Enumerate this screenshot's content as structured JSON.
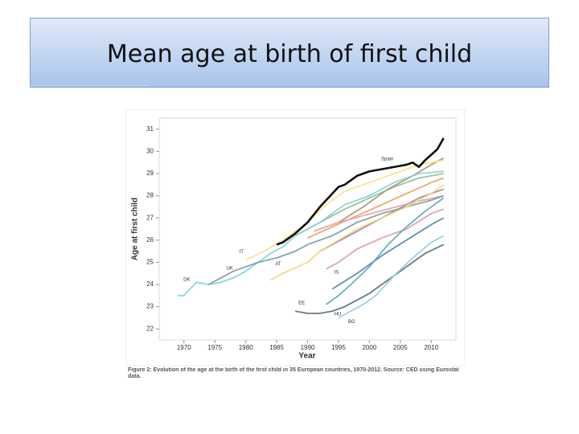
{
  "slide_title": "Mean age at birth of first child",
  "caption": "Figure 2: Evolution of the age at the birth of the first child in 35 European countries, 1970-2012. Source: CED using Eurostat data.",
  "chart_data": {
    "type": "line",
    "xlabel": "Year",
    "ylabel": "Age at first child",
    "xlim": [
      1966,
      2014
    ],
    "xticks": [
      1970,
      1975,
      1980,
      1985,
      1990,
      1995,
      2000,
      2005,
      2010
    ],
    "ylim": [
      21.5,
      31.5
    ],
    "yticks": [
      22,
      23,
      24,
      25,
      26,
      27,
      28,
      29,
      30,
      31
    ],
    "grid": false,
    "series": [
      {
        "color": "#e8a060",
        "x": [
          1990,
          1994,
          1998,
          2002,
          2006,
          2010,
          2012
        ],
        "values": [
          26.1,
          26.6,
          27.1,
          27.6,
          28.1,
          28.6,
          28.8
        ]
      },
      {
        "color": "#9a82b8",
        "x": [
          1992,
          1996,
          2000,
          2004,
          2008,
          2012
        ],
        "values": [
          25.5,
          26.1,
          26.7,
          27.3,
          27.9,
          28.3
        ]
      },
      {
        "color": "#8fbf8f",
        "x": [
          1988,
          1992,
          1996,
          2000,
          2004,
          2008,
          2012
        ],
        "values": [
          26.2,
          26.8,
          27.4,
          27.9,
          28.4,
          28.8,
          29.0
        ]
      },
      {
        "color": "#b0906a",
        "x": [
          1995,
          1999,
          2003,
          2007,
          2010,
          2012
        ],
        "values": [
          26.8,
          27.5,
          28.3,
          28.9,
          29.4,
          29.7
        ]
      },
      {
        "color": "#4f7fae",
        "x": [
          1994,
          1998,
          2002,
          2006,
          2010,
          2012
        ],
        "values": [
          23.8,
          24.5,
          25.3,
          26.0,
          26.7,
          27.0
        ]
      },
      {
        "color": "#e6a0a0",
        "x": [
          1991,
          1995,
          1999,
          2003,
          2007,
          2012
        ],
        "values": [
          26.4,
          26.8,
          27.1,
          27.4,
          27.7,
          28.0
        ]
      },
      {
        "name": "DK",
        "color": "#7fd3d6",
        "x": [
          1969,
          1970,
          1971,
          1972,
          1974,
          1976,
          1978,
          1980,
          1982,
          1984,
          1986,
          1988,
          1990,
          1992,
          1994,
          1996,
          1998,
          2000,
          2004,
          2008,
          2012
        ],
        "values": [
          23.5,
          23.5,
          23.8,
          24.1,
          24.0,
          24.1,
          24.3,
          24.6,
          25.0,
          25.4,
          25.7,
          26.2,
          26.5,
          26.8,
          27.2,
          27.6,
          27.8,
          28.0,
          28.6,
          29.0,
          29.1
        ]
      },
      {
        "name": "UK",
        "color": "#7a9aa8",
        "x": [
          1974,
          1976,
          1978,
          1980,
          1982,
          1985,
          1988,
          1990,
          1994,
          1998,
          2002,
          2006,
          2010,
          2012
        ],
        "values": [
          24.0,
          24.3,
          24.6,
          24.8,
          25.0,
          25.2,
          25.5,
          25.8,
          26.2,
          26.8,
          27.2,
          27.5,
          27.8,
          28.0
        ]
      },
      {
        "name": "IT",
        "color": "#f2e58a",
        "x": [
          1980,
          1983,
          1986,
          1990,
          1993,
          1996,
          2000,
          2004,
          2008,
          2012
        ],
        "values": [
          25.1,
          25.5,
          26.0,
          26.8,
          27.6,
          28.2,
          28.6,
          29.0,
          29.4,
          29.6
        ]
      },
      {
        "name": "AT",
        "color": "#f0d870",
        "x": [
          1984,
          1986,
          1990,
          1992,
          1995,
          1998,
          2002,
          2006,
          2010,
          2012
        ],
        "values": [
          24.2,
          24.5,
          25.0,
          25.5,
          26.0,
          26.5,
          27.0,
          27.5,
          28.1,
          28.5
        ]
      },
      {
        "name": "IS",
        "color": "#d89bb0",
        "x": [
          1993,
          1995,
          1998,
          2002,
          2006,
          2010,
          2012
        ],
        "values": [
          24.7,
          25.0,
          25.6,
          26.1,
          26.5,
          27.2,
          27.4
        ]
      },
      {
        "name": "HU",
        "color": "#5aa9b5",
        "x": [
          1993,
          1995,
          1997,
          2000,
          2003,
          2006,
          2009,
          2012
        ],
        "values": [
          23.1,
          23.5,
          24.0,
          24.8,
          25.8,
          26.6,
          27.3,
          27.9
        ]
      },
      {
        "name": "EE",
        "color": "#5a6e7a",
        "x": [
          1988,
          1990,
          1992,
          1994,
          1996,
          1998,
          2000,
          2003,
          2006,
          2009,
          2012
        ],
        "values": [
          22.8,
          22.7,
          22.7,
          22.8,
          23.0,
          23.3,
          23.6,
          24.2,
          24.8,
          25.4,
          25.8
        ]
      },
      {
        "name": "BG",
        "color": "#8ed0e0",
        "x": [
          1995,
          1997,
          1999,
          2001,
          2004,
          2007,
          2010,
          2012
        ],
        "values": [
          22.5,
          22.8,
          23.1,
          23.5,
          24.4,
          25.2,
          25.9,
          26.2
        ]
      },
      {
        "name": "Spain",
        "color": "#111111",
        "x": [
          1985,
          1986,
          1988,
          1990,
          1992,
          1994,
          1995,
          1996,
          1998,
          2000,
          2002,
          2004,
          2006,
          2007,
          2008,
          2009,
          2011,
          2012
        ],
        "values": [
          25.8,
          25.9,
          26.3,
          26.8,
          27.5,
          28.1,
          28.4,
          28.5,
          28.9,
          29.1,
          29.2,
          29.3,
          29.4,
          29.5,
          29.3,
          29.6,
          30.1,
          30.6
        ]
      }
    ]
  }
}
